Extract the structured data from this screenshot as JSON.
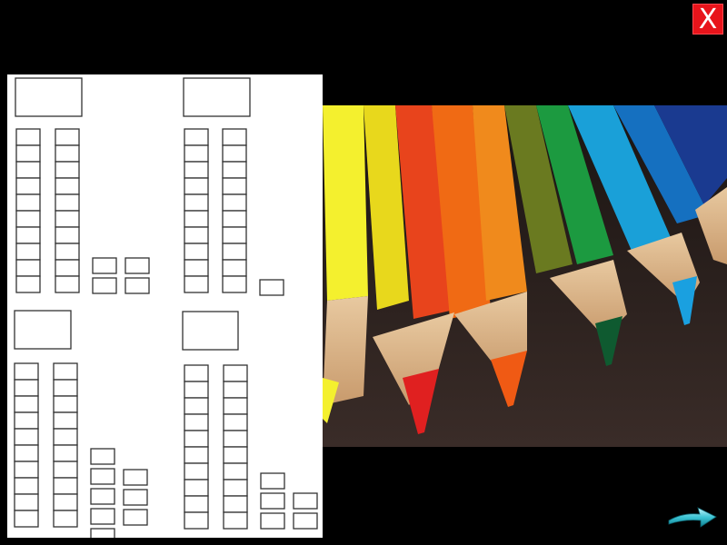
{
  "controls": {
    "close_label": "X"
  },
  "icons": {
    "close": "close-icon",
    "next": "next-arrow-icon",
    "photo": "colored-pencils-photo",
    "worksheet": "place-value-worksheet"
  },
  "colors": {
    "background": "#000000",
    "close_button": "#e8141b",
    "arrow": "#2fb9c9"
  }
}
